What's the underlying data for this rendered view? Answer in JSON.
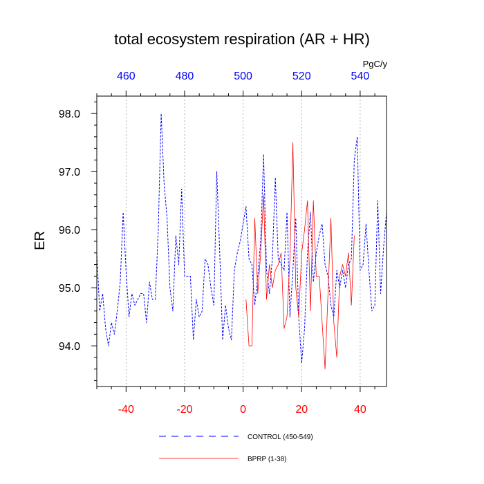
{
  "chart_data": {
    "type": "line",
    "title": "total ecosystem respiration (AR + HR)",
    "ylabel": "ER",
    "units": "PgC/y",
    "xlim_bottom": [
      -50,
      49
    ],
    "xlim_top": [
      450,
      549
    ],
    "ylim": [
      93.3,
      98.3
    ],
    "bottom_ticks": [
      -40,
      -20,
      0,
      20,
      40
    ],
    "top_ticks": [
      460,
      480,
      500,
      520,
      540
    ],
    "y_ticks": [
      94.0,
      95.0,
      96.0,
      97.0,
      98.0
    ],
    "y_tick_labels": [
      "94.0",
      "95.0",
      "96.0",
      "97.0",
      "98.0"
    ],
    "grid": "vertical dotted at bottom ticks",
    "colors": {
      "control": "#0000ff",
      "bprp": "#ff0000",
      "bottom_axis": "#ff0000",
      "top_axis": "#0000ff"
    },
    "legend_placement": "below plot",
    "series": [
      {
        "name": "CONTROL (450-549)",
        "axis": "top",
        "style": "dashed",
        "x": [
          450,
          451,
          452,
          453,
          454,
          455,
          456,
          457,
          458,
          459,
          460,
          461,
          462,
          463,
          464,
          465,
          466,
          467,
          468,
          469,
          470,
          471,
          472,
          473,
          474,
          475,
          476,
          477,
          478,
          479,
          480,
          481,
          482,
          483,
          484,
          485,
          486,
          487,
          488,
          489,
          490,
          491,
          492,
          493,
          494,
          495,
          496,
          497,
          498,
          499,
          500,
          501,
          502,
          503,
          504,
          505,
          506,
          507,
          508,
          509,
          510,
          511,
          512,
          513,
          514,
          515,
          516,
          517,
          518,
          519,
          520,
          521,
          522,
          523,
          524,
          525,
          526,
          527,
          528,
          529,
          530,
          531,
          532,
          533,
          534,
          535,
          536,
          537,
          538,
          539,
          540,
          541,
          542,
          543,
          544,
          545,
          546,
          547,
          548,
          549
        ],
        "y": [
          95.6,
          94.6,
          94.9,
          94.3,
          94.0,
          94.4,
          94.2,
          94.6,
          95.1,
          96.3,
          95.3,
          94.5,
          94.9,
          94.7,
          94.8,
          94.9,
          94.9,
          94.4,
          95.1,
          94.8,
          94.8,
          96.0,
          98.0,
          96.8,
          96.2,
          95.0,
          94.6,
          95.9,
          95.4,
          96.7,
          95.2,
          95.2,
          95.2,
          94.1,
          94.8,
          94.5,
          94.6,
          95.5,
          95.4,
          95.0,
          94.7,
          97.0,
          95.6,
          94.1,
          94.7,
          94.3,
          94.1,
          95.3,
          95.6,
          95.8,
          96.1,
          96.4,
          95.5,
          95.4,
          94.7,
          95.2,
          95.8,
          97.3,
          95.3,
          94.9,
          95.5,
          96.9,
          95.5,
          95.4,
          95.3,
          96.3,
          94.5,
          95.3,
          96.2,
          94.5,
          93.7,
          94.3,
          95.6,
          96.3,
          95.1,
          95.6,
          95.9,
          96.1,
          95.4,
          95.2,
          94.7,
          94.5,
          95.3,
          95.0,
          95.3,
          95.0,
          95.4,
          95.5,
          97.2,
          97.6,
          95.3,
          95.4,
          96.1,
          95.3,
          94.6,
          94.7,
          96.5,
          94.9,
          95.7,
          96.3
        ]
      },
      {
        "name": "BPRP (1-38)",
        "axis": "bottom",
        "style": "solid",
        "x": [
          1,
          2,
          3,
          4,
          5,
          6,
          7,
          8,
          9,
          10,
          11,
          12,
          13,
          14,
          15,
          16,
          17,
          18,
          19,
          20,
          21,
          22,
          23,
          24,
          25,
          26,
          27,
          28,
          29,
          30,
          31,
          32,
          33,
          34,
          35,
          36,
          37,
          38
        ],
        "y": [
          94.8,
          94.0,
          94.0,
          96.2,
          94.9,
          95.6,
          96.6,
          94.8,
          95.4,
          95.0,
          95.3,
          95.4,
          95.6,
          94.3,
          94.5,
          95.5,
          97.5,
          95.0,
          94.5,
          95.6,
          96.0,
          96.5,
          94.6,
          96.5,
          95.2,
          95.2,
          94.4,
          93.6,
          94.9,
          96.2,
          94.4,
          93.8,
          95.2,
          95.4,
          95.2,
          95.6,
          94.7,
          95.9
        ]
      }
    ]
  }
}
